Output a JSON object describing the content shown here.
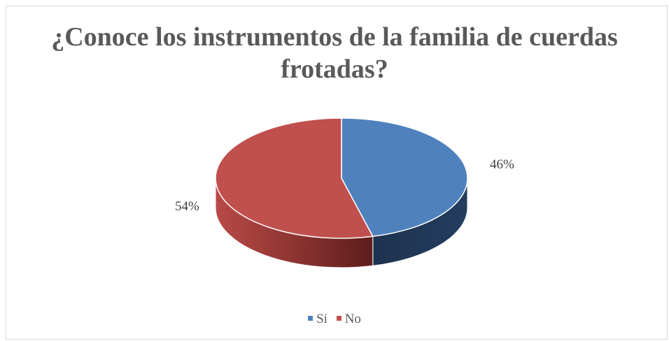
{
  "chart_data": {
    "type": "pie",
    "title": "¿Conoce los instrumentos de la familia de cuerdas frotadas?",
    "title_lines": [
      "¿Conoce los instrumentos de la familia de cuerdas",
      "frotadas?"
    ],
    "categories": [
      "Si",
      "No"
    ],
    "values": [
      46,
      54
    ],
    "data_labels": [
      "46%",
      "54%"
    ],
    "colors": [
      "#4f81bd",
      "#c0504d"
    ],
    "side_colors": [
      "#1f3552",
      "#6e2321"
    ],
    "legend_position": "bottom",
    "style": "3d"
  }
}
